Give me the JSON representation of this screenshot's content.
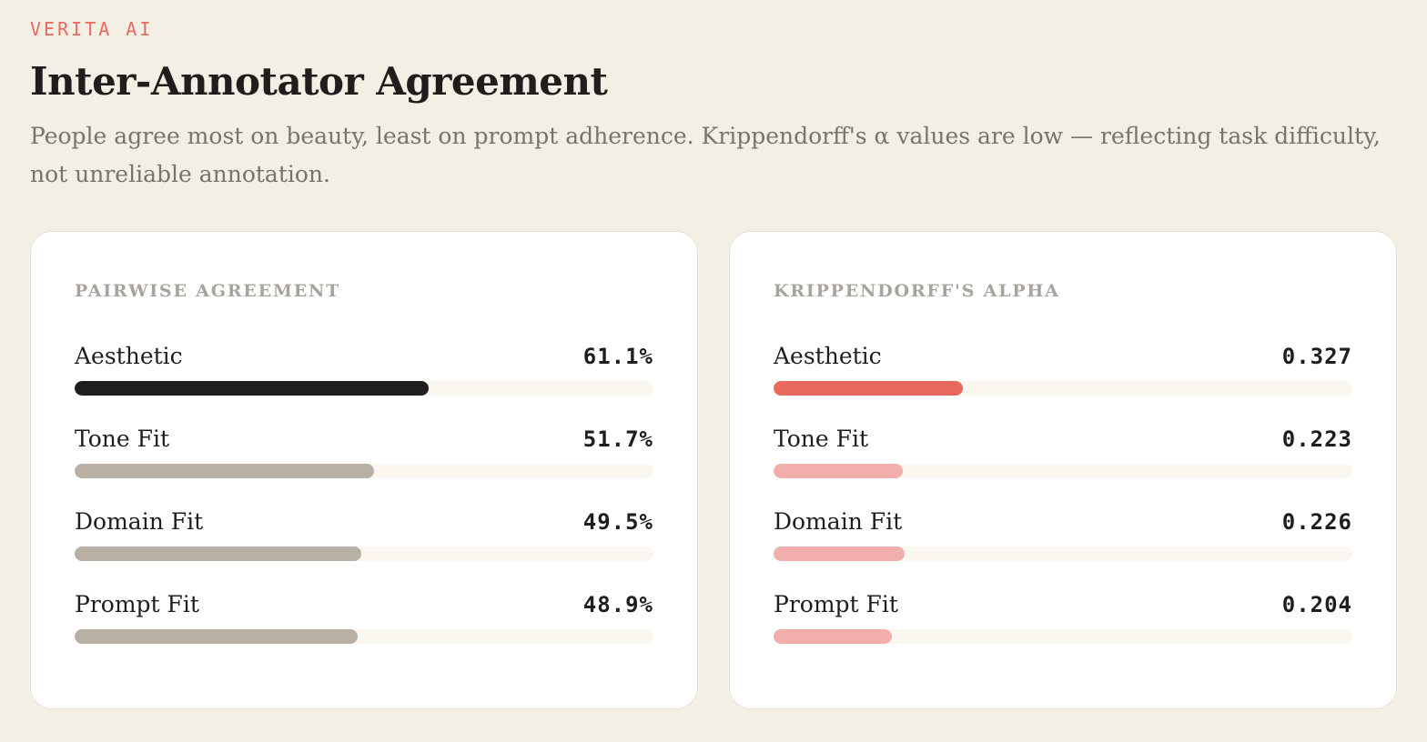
{
  "header": {
    "brand": "VERITA AI",
    "title": "Inter-Annotator Agreement",
    "subtitle": "People agree most on beauty, least on prompt adherence. Krippendorff's α values are low — reflecting task difficulty, not unreliable annotation."
  },
  "colors": {
    "background": "#f3efe4",
    "brand": "#e8695d",
    "pairwise_top": "#1f1e1c",
    "pairwise_rest": "#b8b0a5",
    "alpha_top": "#e8695d",
    "alpha_rest": "#f2aeaa",
    "track": "#faf6f0"
  },
  "chart_data": [
    {
      "type": "bar",
      "orientation": "horizontal",
      "title": "PAIRWISE AGREEMENT",
      "categories": [
        "Aesthetic",
        "Tone Fit",
        "Domain Fit",
        "Prompt Fit"
      ],
      "values": [
        61.1,
        51.7,
        49.5,
        48.9
      ],
      "value_labels": [
        "61.1%",
        "51.7%",
        "49.5%",
        "48.9%"
      ],
      "xlim": [
        0,
        100
      ],
      "colors": [
        "#1f1e1c",
        "#b8b0a5",
        "#b8b0a5",
        "#b8b0a5"
      ]
    },
    {
      "type": "bar",
      "orientation": "horizontal",
      "title": "KRIPPENDORFF'S ALPHA",
      "categories": [
        "Aesthetic",
        "Tone Fit",
        "Domain Fit",
        "Prompt Fit"
      ],
      "values": [
        0.327,
        0.223,
        0.226,
        0.204
      ],
      "value_labels": [
        "0.327",
        "0.223",
        "0.226",
        "0.204"
      ],
      "xlim": [
        0,
        1
      ],
      "colors": [
        "#e8695d",
        "#f2aeaa",
        "#f2aeaa",
        "#f2aeaa"
      ]
    }
  ]
}
